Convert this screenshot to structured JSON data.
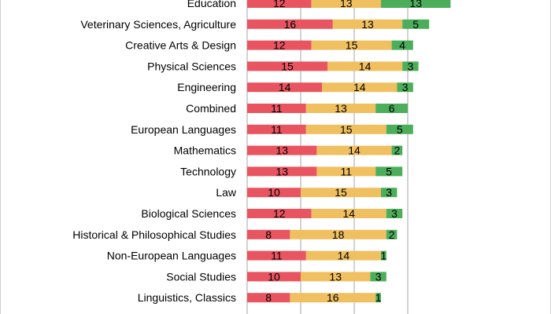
{
  "chart_data": {
    "type": "bar",
    "orientation": "horizontal",
    "stacked": true,
    "title": "",
    "xlabel": "",
    "ylabel": "",
    "grid": true,
    "colors": {
      "first": "#e8545f",
      "second": "#f0c060",
      "third": "#4cae5a",
      "grid": "#a6a6a6"
    },
    "categories": [
      "Education",
      "Veterinary Sciences, Agriculture",
      "Creative Arts & Design",
      "Physical Sciences",
      "Engineering",
      "Combined",
      "European Languages",
      "Mathematics",
      "Technology",
      "Law",
      "Biological Sciences",
      "Historical & Philosophical Studies",
      "Non-European Languages",
      "Social Studies",
      "Linguistics, Classics"
    ],
    "series": [
      {
        "values": [
          12,
          16,
          12,
          15,
          14,
          11,
          11,
          13,
          13,
          10,
          12,
          8,
          11,
          10,
          8
        ]
      },
      {
        "values": [
          13,
          13,
          15,
          14,
          14,
          13,
          15,
          14,
          11,
          15,
          14,
          18,
          14,
          13,
          16
        ]
      },
      {
        "values": [
          13,
          5,
          4,
          3,
          3,
          6,
          5,
          2,
          5,
          3,
          3,
          2,
          1,
          3,
          1
        ]
      }
    ]
  }
}
